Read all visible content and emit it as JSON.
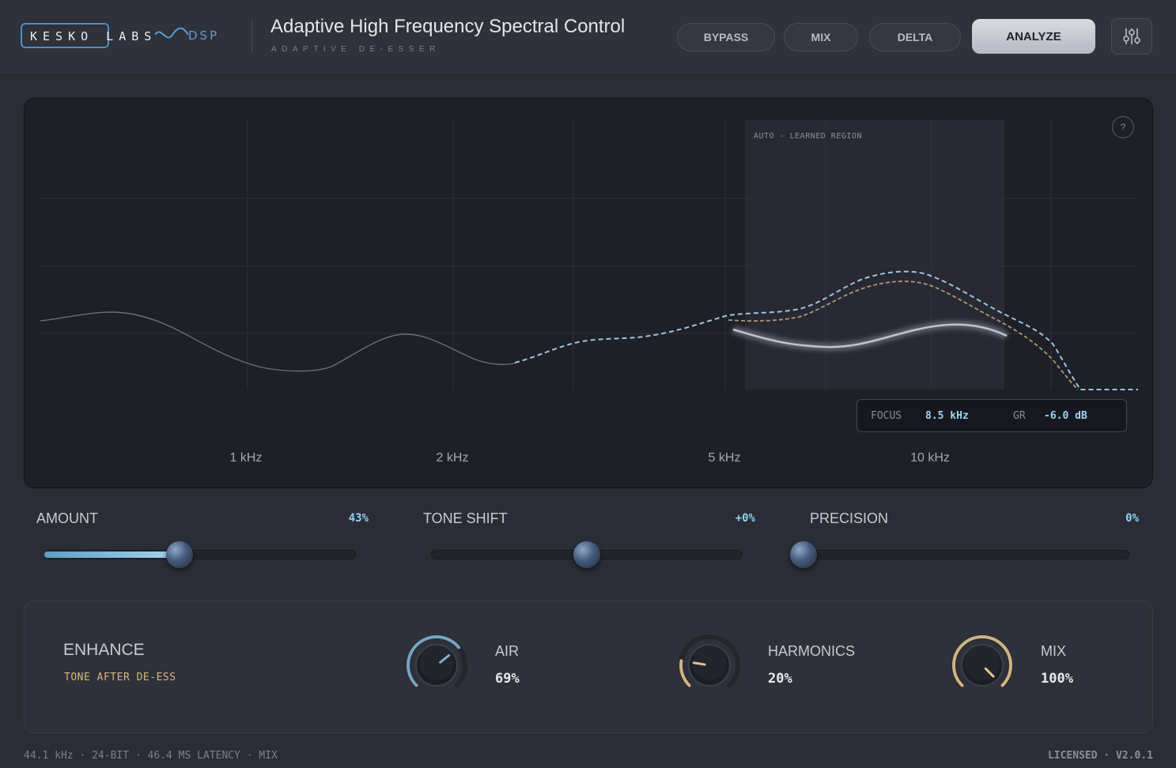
{
  "header": {
    "logo_text": "KESKO LABS",
    "logo_dsp": "DSP",
    "title": "Adaptive High Frequency Spectral Control",
    "subtitle": "ADAPTIVE DE-ESSER",
    "buttons": {
      "bypass": "BYPASS",
      "mix": "MIX",
      "delta": "DELTA",
      "analyze": "ANALYZE"
    },
    "settings_icon": "sliders-icon"
  },
  "analyzer": {
    "region_label": "AUTO - LEARNED REGION",
    "help_label": "?",
    "focus_label": "FOCUS",
    "focus_value": "8.5 kHz",
    "gr_label": "GR",
    "gr_value": "-6.0 dB",
    "freq_labels": [
      "1 kHz",
      "2 kHz",
      "5 kHz",
      "10 kHz"
    ],
    "colors": {
      "input_dashed": "#9cc6dc",
      "output_dashed": "#a89a78",
      "reduction": "#bfc3cc"
    }
  },
  "sliders": [
    {
      "label": "AMOUNT",
      "value": "43%",
      "fraction": 0.43
    },
    {
      "label": "TONE SHIFT",
      "value": "+0%",
      "fraction": 0.5
    },
    {
      "label": "PRECISION",
      "value": "0%",
      "fraction": 0.0
    }
  ],
  "enhance": {
    "title": "ENHANCE",
    "subtitle": "TONE AFTER DE-ESS",
    "knobs": [
      {
        "label": "AIR",
        "value": "69%",
        "fraction": 0.69,
        "color": "#7fb2d1"
      },
      {
        "label": "HARMONICS",
        "value": "20%",
        "fraction": 0.2,
        "color": "#e0c48e"
      },
      {
        "label": "MIX",
        "value": "100%",
        "fraction": 1.0,
        "color": "#e0c48e"
      }
    ]
  },
  "footer": {
    "left": "44.1 kHz · 24-BIT · 46.4 MS LATENCY · MIX",
    "right": "LICENSED · V2.0.1"
  }
}
